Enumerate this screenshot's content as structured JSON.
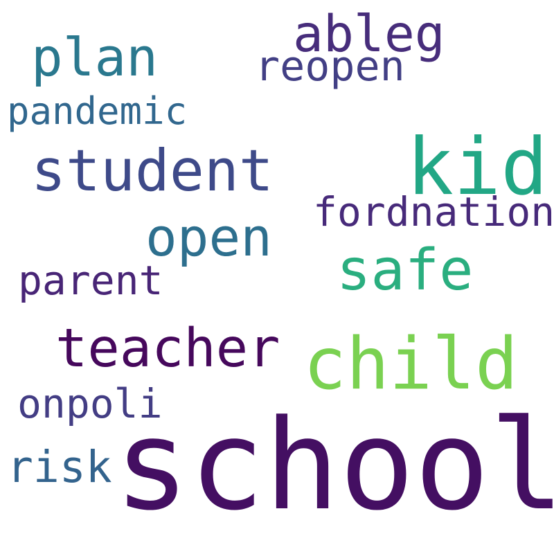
{
  "words": [
    {
      "key": "school",
      "text": "school",
      "color": "#440f62"
    },
    {
      "key": "child",
      "text": "child",
      "color": "#7ad151"
    },
    {
      "key": "kid",
      "text": "kid",
      "color": "#22a785"
    },
    {
      "key": "safe",
      "text": "safe",
      "color": "#2aae7f"
    },
    {
      "key": "student",
      "text": "student",
      "color": "#3e4a89"
    },
    {
      "key": "teacher",
      "text": "teacher",
      "color": "#46085c"
    },
    {
      "key": "open",
      "text": "open",
      "color": "#2d6f8e"
    },
    {
      "key": "plan",
      "text": "plan",
      "color": "#2a788e"
    },
    {
      "key": "ableg",
      "text": "ableg",
      "color": "#472d7b"
    },
    {
      "key": "reopen",
      "text": "reopen",
      "color": "#423f85"
    },
    {
      "key": "fordnation",
      "text": "fordnation",
      "color": "#472a7a"
    },
    {
      "key": "pandemic",
      "text": "pandemic",
      "color": "#31678e"
    },
    {
      "key": "parent",
      "text": "parent",
      "color": "#482576"
    },
    {
      "key": "onpoli",
      "text": "onpoli",
      "color": "#433d84"
    },
    {
      "key": "risk",
      "text": "risk",
      "color": "#33638d"
    }
  ]
}
